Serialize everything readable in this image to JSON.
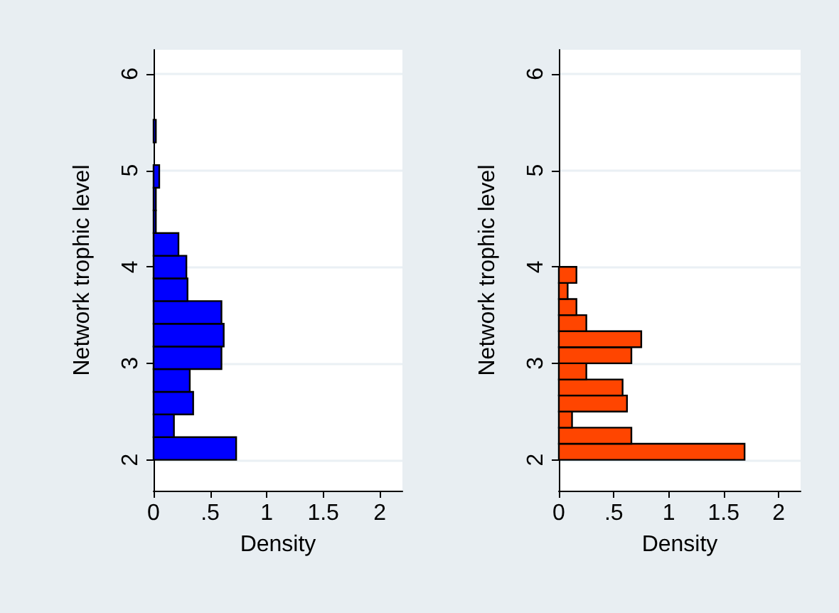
{
  "chart_data": [
    {
      "type": "histogram",
      "orientation": "horizontal",
      "xlabel": "Density",
      "ylabel": "Network trophic level",
      "color": "#0000ff",
      "bins": [
        2,
        2.235,
        2.47,
        2.705,
        2.94,
        3.175,
        3.41,
        3.645,
        3.88,
        4.115,
        4.35,
        4.585,
        4.82,
        5.055,
        5.29,
        5.525
      ],
      "values": [
        0.73,
        0.18,
        0.35,
        0.32,
        0.6,
        0.62,
        0.6,
        0.3,
        0.29,
        0.22,
        0.02,
        0.02,
        0.05,
        0,
        0.02
      ],
      "xlim": [
        0,
        2.2
      ],
      "xticks": [
        0,
        {
          "value": 0.5,
          "label": ".5"
        },
        1,
        1.5,
        2
      ],
      "ylim": [
        1.68,
        6.25
      ],
      "yticks": [
        2,
        3,
        4,
        5,
        6
      ],
      "grid": "y"
    },
    {
      "type": "histogram",
      "orientation": "horizontal",
      "xlabel": "Density",
      "ylabel": "Network trophic level",
      "color": "#ff4500",
      "bins": [
        2,
        2.167,
        2.333,
        2.5,
        2.667,
        2.833,
        3,
        3.167,
        3.333,
        3.5,
        3.667,
        3.833,
        4
      ],
      "values": [
        1.69,
        0.66,
        0.12,
        0.62,
        0.58,
        0.25,
        0.66,
        0.75,
        0.25,
        0.16,
        0.08,
        0.16
      ],
      "xlim": [
        0,
        2.2
      ],
      "xticks": [
        0,
        {
          "value": 0.5,
          "label": ".5"
        },
        1,
        1.5,
        2
      ],
      "ylim": [
        1.68,
        6.25
      ],
      "yticks": [
        2,
        3,
        4,
        5,
        6
      ],
      "grid": "y"
    }
  ]
}
